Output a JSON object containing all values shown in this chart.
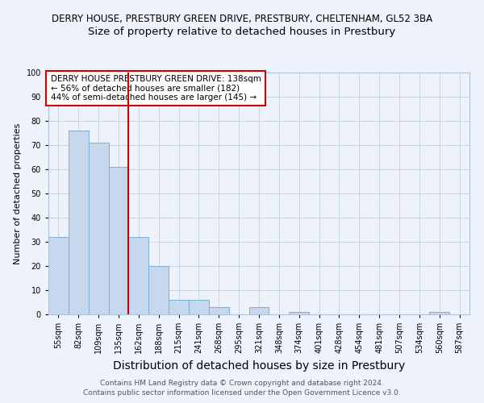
{
  "title1": "DERRY HOUSE, PRESTBURY GREEN DRIVE, PRESTBURY, CHELTENHAM, GL52 3BA",
  "title2": "Size of property relative to detached houses in Prestbury",
  "xlabel": "Distribution of detached houses by size in Prestbury",
  "ylabel": "Number of detached properties",
  "categories": [
    "55sqm",
    "82sqm",
    "109sqm",
    "135sqm",
    "162sqm",
    "188sqm",
    "215sqm",
    "241sqm",
    "268sqm",
    "295sqm",
    "321sqm",
    "348sqm",
    "374sqm",
    "401sqm",
    "428sqm",
    "454sqm",
    "481sqm",
    "507sqm",
    "534sqm",
    "560sqm",
    "587sqm"
  ],
  "values": [
    32,
    76,
    71,
    61,
    32,
    20,
    6,
    6,
    3,
    0,
    3,
    0,
    1,
    0,
    0,
    0,
    0,
    0,
    0,
    1,
    0
  ],
  "bar_color": "#c5d8ed",
  "bar_edge_color": "#7bafd4",
  "vline_x": 3.5,
  "vline_color": "#cc0000",
  "annotation_text": "DERRY HOUSE PRESTBURY GREEN DRIVE: 138sqm\n← 56% of detached houses are smaller (182)\n44% of semi-detached houses are larger (145) →",
  "annotation_box_color": "#ffffff",
  "annotation_box_edge": "#cc0000",
  "footer": "Contains HM Land Registry data © Crown copyright and database right 2024.\nContains public sector information licensed under the Open Government Licence v3.0.",
  "ylim": [
    0,
    100
  ],
  "yticks": [
    0,
    10,
    20,
    30,
    40,
    50,
    60,
    70,
    80,
    90,
    100
  ],
  "title1_fontsize": 8.5,
  "title2_fontsize": 9.5,
  "xlabel_fontsize": 10,
  "ylabel_fontsize": 8,
  "tick_fontsize": 7,
  "footer_fontsize": 6.5,
  "annotation_fontsize": 7.5,
  "background_color": "#eef2fa",
  "plot_background": "#eef2fa"
}
